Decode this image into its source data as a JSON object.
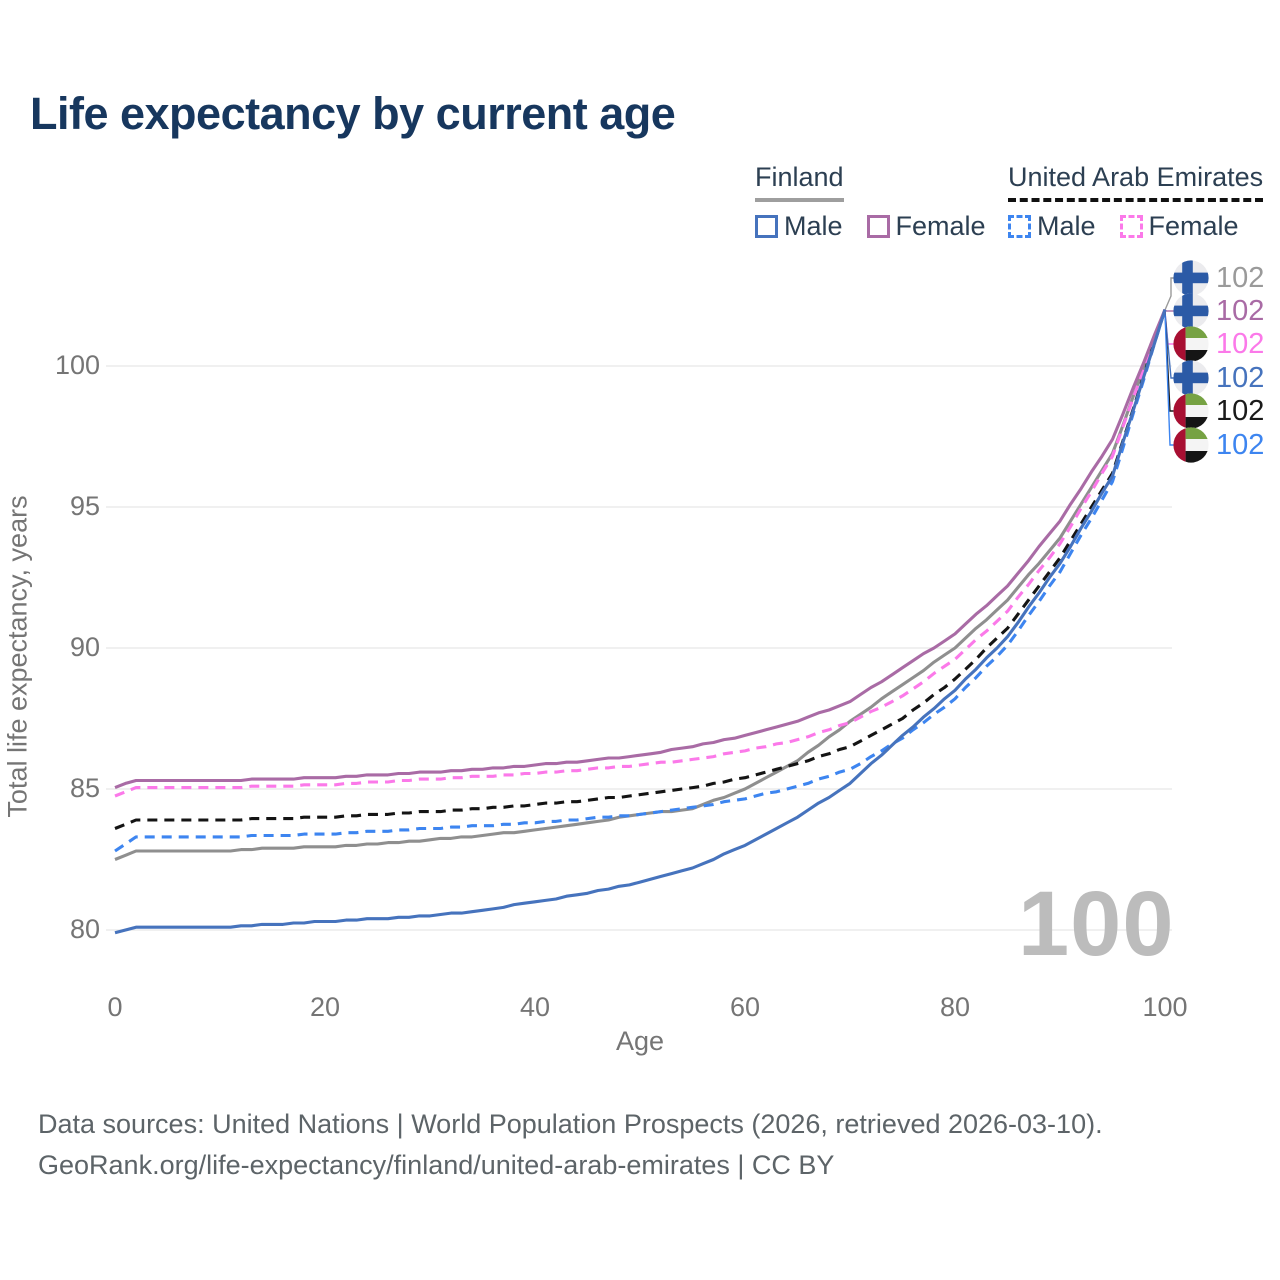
{
  "title": "Life expectancy by current age",
  "legend": {
    "groups": [
      {
        "id": "finland",
        "label": "Finland",
        "underline_style": "solid",
        "underline_color": "#9e9e9e",
        "items": [
          {
            "label": "Male",
            "color": "#4673bd",
            "dash": false
          },
          {
            "label": "Female",
            "color": "#a96ba5",
            "dash": false
          }
        ]
      },
      {
        "id": "uae",
        "label": "United Arab Emirates",
        "underline_style": "dashed",
        "underline_color": "#111111",
        "items": [
          {
            "label": "Male",
            "color": "#3d85f0",
            "dash": true
          },
          {
            "label": "Female",
            "color": "#fb79e9",
            "dash": true
          }
        ]
      }
    ]
  },
  "watermark": "100",
  "end_labels": [
    {
      "flag": "finland",
      "value": "102",
      "color": "#9a9a9a"
    },
    {
      "flag": "finland",
      "value": "102",
      "color": "#a96ba5"
    },
    {
      "flag": "uae",
      "value": "102",
      "color": "#fb79e9"
    },
    {
      "flag": "finland",
      "value": "102",
      "color": "#4673bd"
    },
    {
      "flag": "uae",
      "value": "102",
      "color": "#1a1a1a"
    },
    {
      "flag": "uae",
      "value": "102",
      "color": "#3d85f0"
    }
  ],
  "chart_data": {
    "type": "line",
    "title": "Life expectancy by current age",
    "xlabel": "Age",
    "ylabel": "Total life expectancy, years",
    "xlim": [
      0,
      100
    ],
    "ylim": [
      79.5,
      102.5
    ],
    "xticks": [
      0,
      20,
      40,
      60,
      80,
      100
    ],
    "yticks": [
      80,
      85,
      90,
      95,
      100
    ],
    "grid": "horizontal",
    "legend_position": "top-right",
    "x": [
      0,
      2,
      5,
      10,
      15,
      20,
      25,
      30,
      35,
      40,
      45,
      50,
      55,
      60,
      65,
      70,
      75,
      80,
      85,
      90,
      95,
      100
    ],
    "series": [
      {
        "name": "Finland",
        "country": "finland",
        "sex": "total",
        "color": "#8f8f8f",
        "dash": false,
        "values": [
          82.5,
          82.8,
          82.8,
          82.8,
          82.9,
          82.95,
          83.05,
          83.2,
          83.35,
          83.55,
          83.8,
          84.1,
          84.3,
          85.0,
          86.0,
          87.4,
          88.7,
          90.0,
          91.7,
          93.9,
          96.9,
          102
        ]
      },
      {
        "name": "United Arab Emirates",
        "country": "uae",
        "sex": "total",
        "color": "#141414",
        "dash": true,
        "values": [
          83.6,
          83.9,
          83.9,
          83.9,
          83.95,
          84.0,
          84.1,
          84.2,
          84.3,
          84.45,
          84.6,
          84.8,
          85.05,
          85.4,
          85.9,
          86.5,
          87.5,
          88.9,
          90.7,
          93.2,
          96.2,
          102
        ]
      },
      {
        "name": "United Arab Emirates Male",
        "country": "uae",
        "sex": "male",
        "color": "#3d85f0",
        "dash": true,
        "values": [
          82.8,
          83.3,
          83.3,
          83.3,
          83.35,
          83.4,
          83.5,
          83.6,
          83.7,
          83.8,
          83.95,
          84.1,
          84.35,
          84.65,
          85.1,
          85.7,
          86.8,
          88.2,
          90.1,
          92.7,
          95.9,
          102
        ]
      },
      {
        "name": "United Arab Emirates Female",
        "country": "uae",
        "sex": "female",
        "color": "#fb79e9",
        "dash": true,
        "values": [
          84.75,
          85.05,
          85.05,
          85.05,
          85.1,
          85.15,
          85.25,
          85.35,
          85.45,
          85.55,
          85.7,
          85.85,
          86.05,
          86.35,
          86.75,
          87.35,
          88.3,
          89.6,
          91.3,
          93.7,
          96.8,
          102
        ]
      },
      {
        "name": "Finland Female",
        "country": "finland",
        "sex": "female",
        "color": "#a96ba5",
        "dash": false,
        "values": [
          85.05,
          85.3,
          85.3,
          85.3,
          85.35,
          85.4,
          85.5,
          85.6,
          85.7,
          85.85,
          86.0,
          86.2,
          86.5,
          86.9,
          87.4,
          88.1,
          89.3,
          90.5,
          92.2,
          94.5,
          97.4,
          102
        ]
      },
      {
        "name": "Finland Male",
        "country": "finland",
        "sex": "male",
        "color": "#4673bd",
        "dash": false,
        "values": [
          79.9,
          80.1,
          80.1,
          80.1,
          80.2,
          80.3,
          80.4,
          80.5,
          80.7,
          81.0,
          81.3,
          81.7,
          82.2,
          83.0,
          84.0,
          85.2,
          86.9,
          88.5,
          90.4,
          93.0,
          96.1,
          102
        ]
      }
    ],
    "end_value_label": "102"
  },
  "footer": {
    "line1": "Data sources: United Nations | World Population Prospects (2026, retrieved 2026-03-10).",
    "line2": "GeoRank.org/life-expectancy/finland/united-arab-emirates | CC BY"
  }
}
